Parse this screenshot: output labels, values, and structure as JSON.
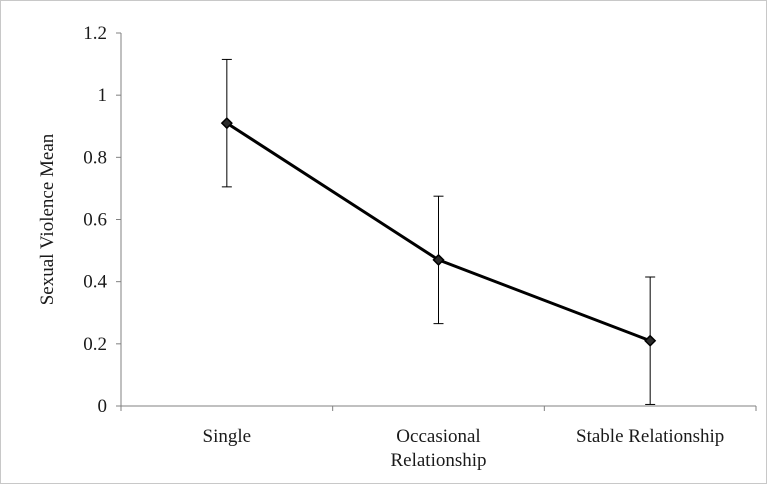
{
  "chart_data": {
    "type": "line",
    "title": "",
    "xlabel": "",
    "ylabel": "Sexual Violence Mean",
    "categories": [
      [
        "Single"
      ],
      [
        "Occasional",
        "Relationship"
      ],
      [
        "Stable Relationship"
      ]
    ],
    "series": [
      {
        "values": [
          0.91,
          0.47,
          0.21
        ],
        "error": [
          0.205,
          0.205,
          0.205
        ],
        "color": "#000000",
        "marker": "diamond"
      }
    ],
    "ylim": [
      0,
      1.2
    ],
    "yticks": [
      0,
      0.2,
      0.4,
      0.6,
      0.8,
      1,
      1.2
    ],
    "ytick_labels": [
      "0",
      "0.2",
      "0.4",
      "0.6",
      "0.8",
      "1",
      "1.2"
    ],
    "grid": false,
    "legend": "none"
  }
}
